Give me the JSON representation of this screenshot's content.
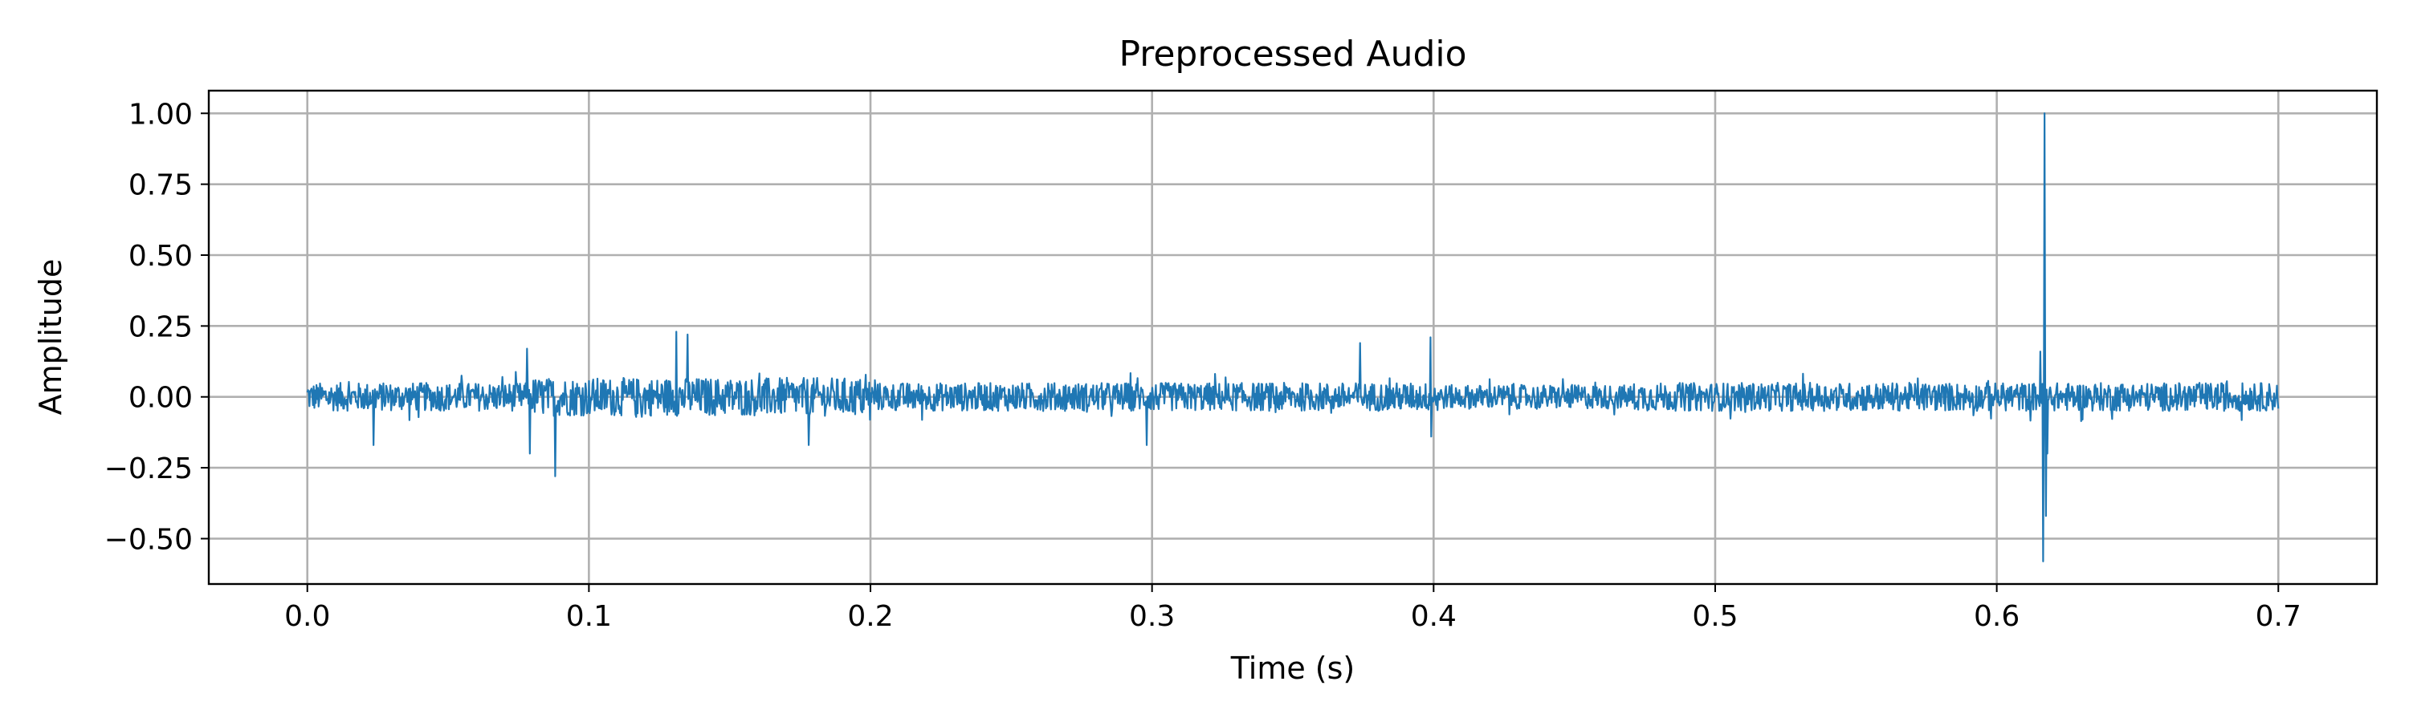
{
  "chart_data": {
    "type": "line",
    "title": "Preprocessed Audio",
    "xlabel": "Time (s)",
    "ylabel": "Amplitude",
    "xlim": [
      -0.035,
      0.735
    ],
    "ylim": [
      -0.66,
      1.08
    ],
    "xticks": [
      0.0,
      0.1,
      0.2,
      0.3,
      0.4,
      0.5,
      0.6,
      0.7
    ],
    "xtick_labels": [
      "0.0",
      "0.1",
      "0.2",
      "0.3",
      "0.4",
      "0.5",
      "0.6",
      "0.7"
    ],
    "yticks": [
      1.0,
      0.75,
      0.5,
      0.25,
      0.0,
      -0.25,
      -0.5
    ],
    "ytick_labels": [
      "1.00",
      "0.75",
      "0.50",
      "0.25",
      "0.00",
      "−0.25",
      "−0.50"
    ],
    "grid": true,
    "series_color": "#1f77b4",
    "series": [
      {
        "name": "",
        "x_start": 0.0,
        "x_end": 0.7,
        "sample_count": 2800,
        "base_amplitude": 0.05,
        "peaks": [
          {
            "x": 0.0235,
            "y": -0.17
          },
          {
            "x": 0.078,
            "y": 0.17
          },
          {
            "x": 0.079,
            "y": -0.2
          },
          {
            "x": 0.088,
            "y": -0.28
          },
          {
            "x": 0.131,
            "y": 0.23
          },
          {
            "x": 0.135,
            "y": 0.22
          },
          {
            "x": 0.178,
            "y": -0.17
          },
          {
            "x": 0.298,
            "y": -0.17
          },
          {
            "x": 0.374,
            "y": 0.19
          },
          {
            "x": 0.399,
            "y": 0.21
          },
          {
            "x": 0.399,
            "y": -0.14
          },
          {
            "x": 0.6155,
            "y": 0.16
          },
          {
            "x": 0.6165,
            "y": -0.58
          },
          {
            "x": 0.617,
            "y": 1.0
          },
          {
            "x": 0.6175,
            "y": -0.42
          },
          {
            "x": 0.618,
            "y": -0.2
          }
        ]
      }
    ]
  }
}
